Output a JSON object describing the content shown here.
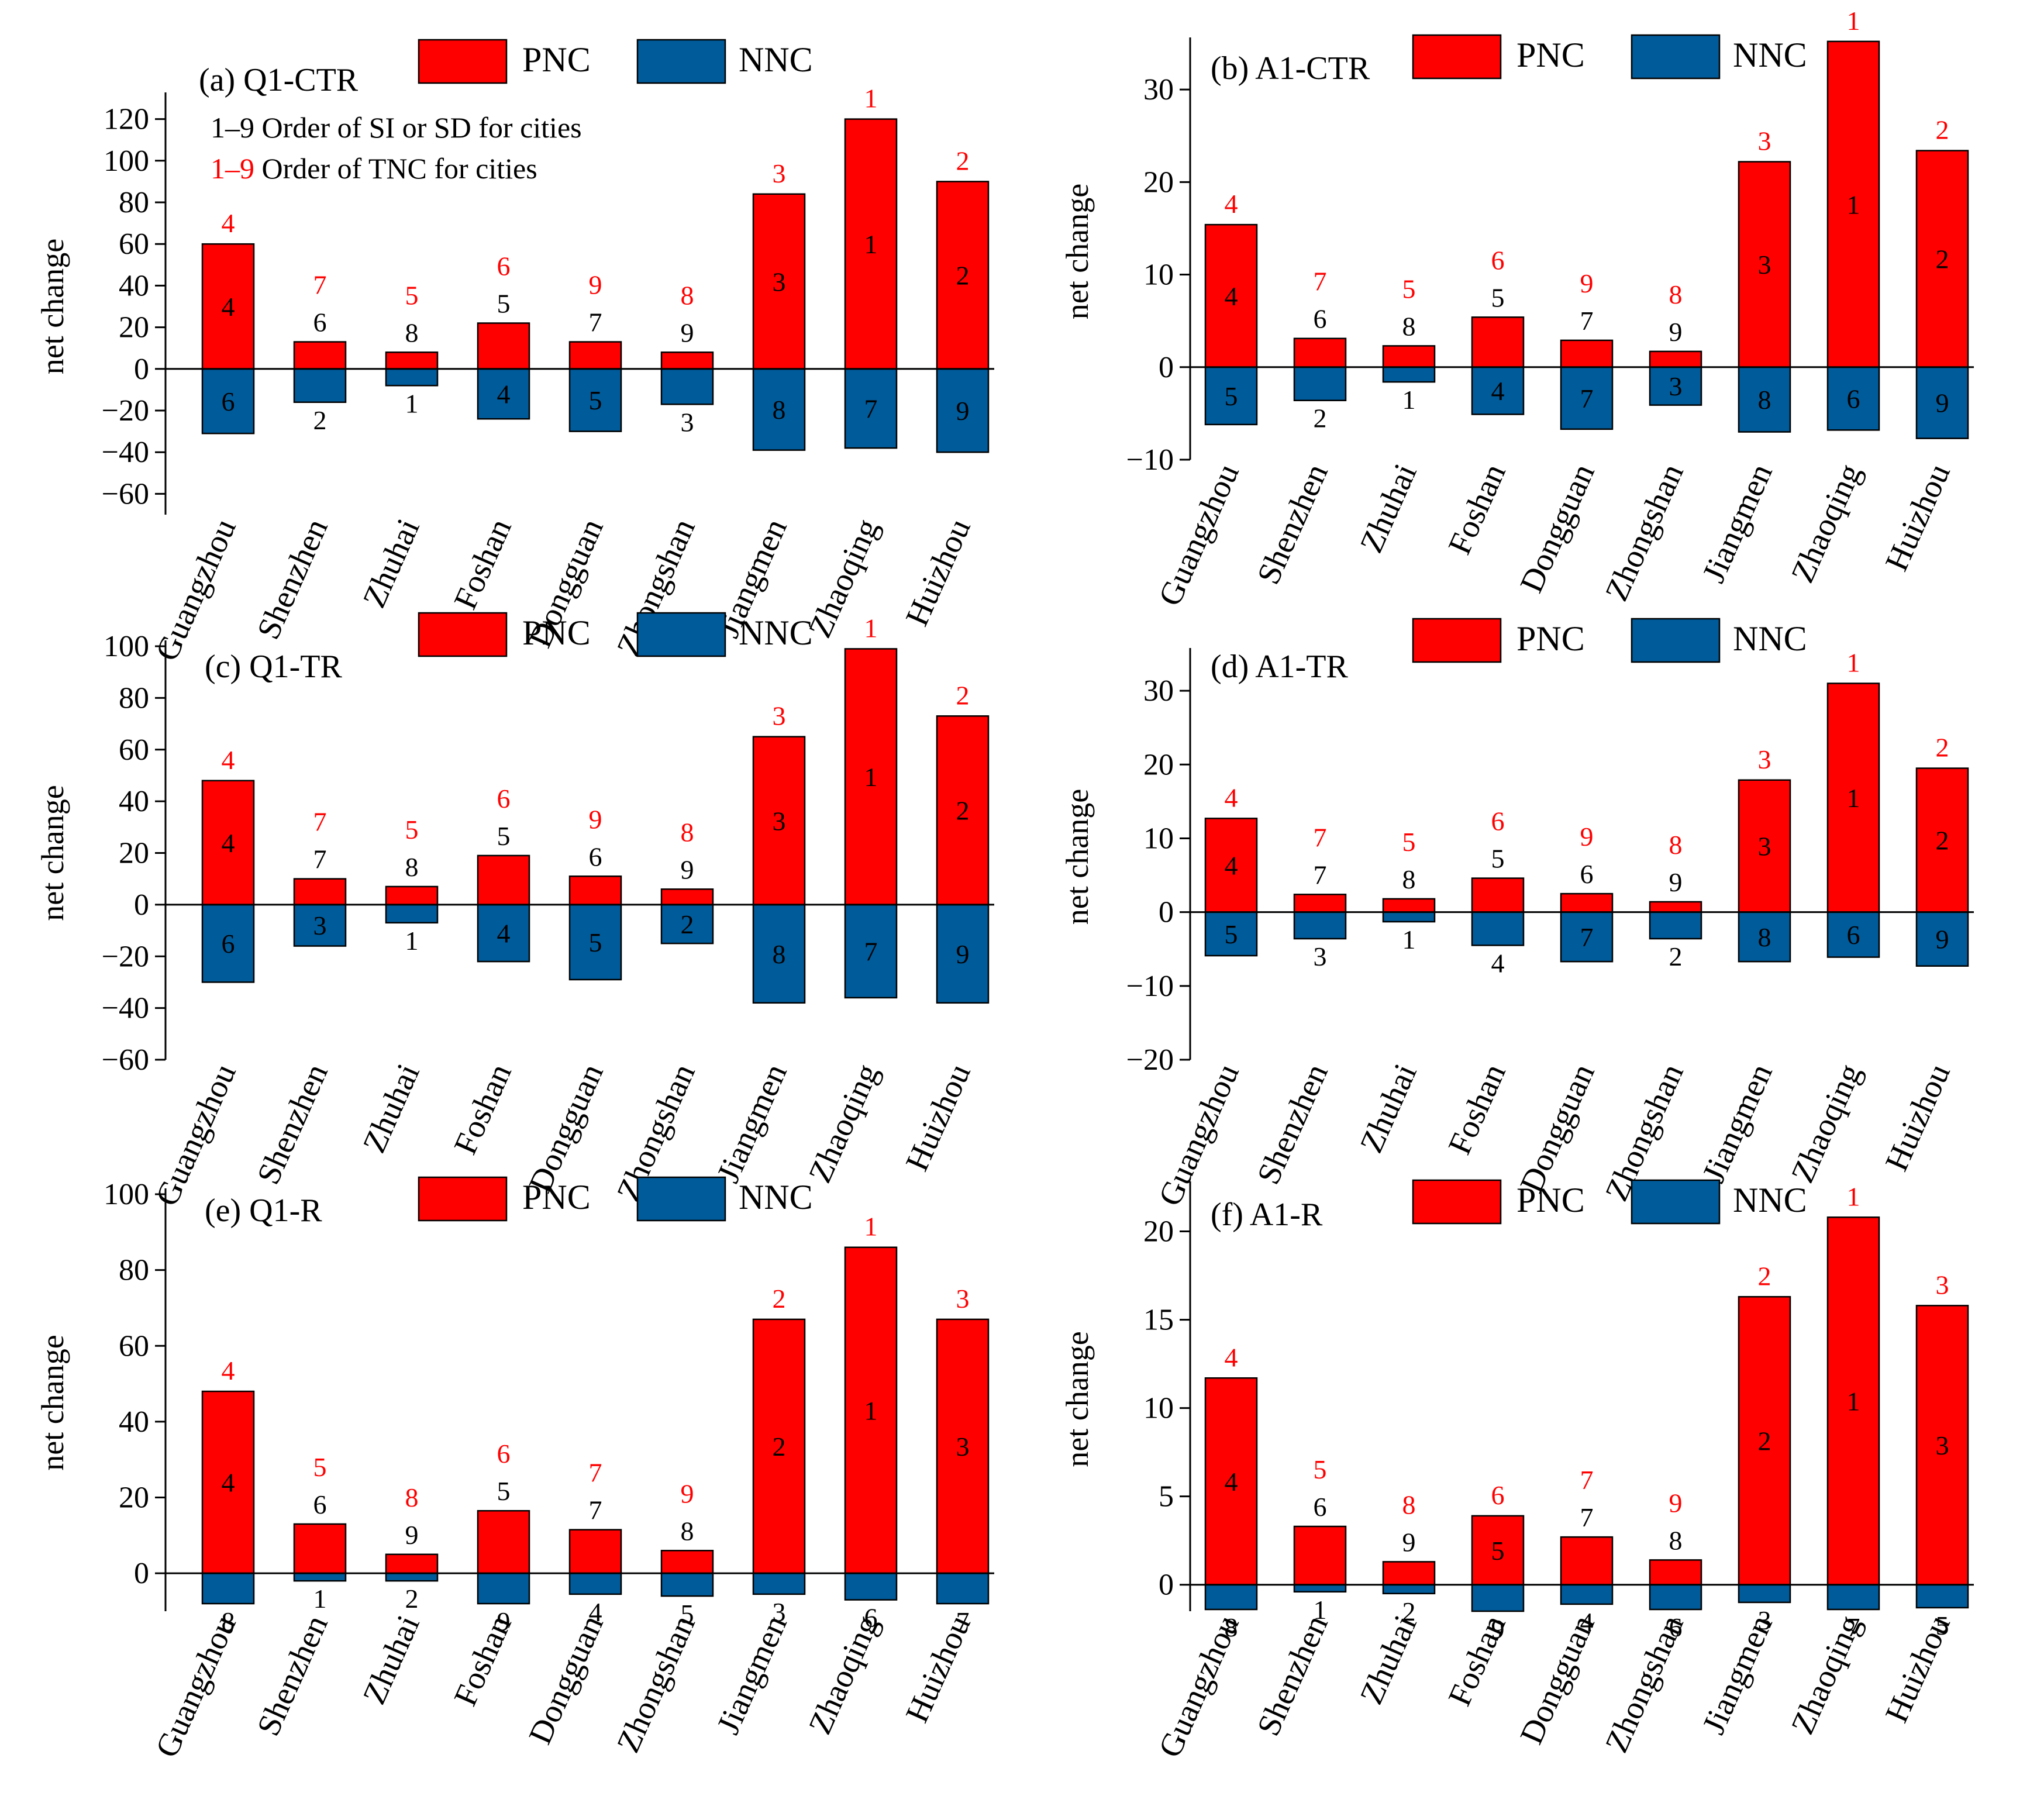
{
  "colors": {
    "pnc": "#ff0000",
    "nnc": "#005b9a",
    "rank_red": "#ff0000",
    "rank_black": "#000000"
  },
  "legend": {
    "pnc_label": "PNC",
    "nnc_label": "NNC"
  },
  "note": {
    "line1_prefix": "1–9",
    "line1_text": "Order of SI or SD for cities",
    "line2_prefix": "1–9",
    "line2_text": "Order of TNC for cities"
  },
  "chart_data": [
    {
      "id": "a",
      "type": "bar",
      "title": "(a) Q1-CTR",
      "ylabel": "net change",
      "xlabel": "",
      "categories": [
        "Guangzhou",
        "Shenzhen",
        "Zhuhai",
        "Foshan",
        "Dongguan",
        "Zhongshan",
        "Jiangmen",
        "Zhaoqing",
        "Huizhou"
      ],
      "ylim": [
        -70,
        130
      ],
      "yticks": [
        120,
        100,
        80,
        60,
        40,
        20,
        0,
        -20,
        -40,
        -60
      ],
      "series": [
        {
          "name": "PNC",
          "values": [
            60,
            13,
            8,
            22,
            13,
            8,
            84,
            120,
            90
          ]
        },
        {
          "name": "NNC",
          "values": [
            -31,
            -16,
            -8,
            -24,
            -30,
            -17,
            -39,
            -38,
            -40
          ]
        }
      ],
      "pnc_order": [
        "4",
        "6",
        "8",
        "5",
        "7",
        "9",
        "3",
        "1",
        "2"
      ],
      "nnc_order": [
        "6",
        "2",
        "1",
        "4",
        "5",
        "3",
        "8",
        "7",
        "9"
      ],
      "tnc_order": [
        "4",
        "7",
        "5",
        "6",
        "9",
        "8",
        "3",
        "1",
        "2"
      ]
    },
    {
      "id": "b",
      "type": "bar",
      "title": "(b) A1-CTR",
      "ylabel": "net change",
      "xlabel": "",
      "categories": [
        "Guangzhou",
        "Shenzhen",
        "Zhuhai",
        "Foshan",
        "Dongguan",
        "Zhongshan",
        "Jiangmen",
        "Zhaoqing",
        "Huizhou"
      ],
      "ylim": [
        -10,
        35
      ],
      "yticks": [
        30,
        20,
        10,
        0,
        -10
      ],
      "series": [
        {
          "name": "PNC",
          "values": [
            15.4,
            3.1,
            2.3,
            5.4,
            2.9,
            1.7,
            22.2,
            35.2,
            23.4
          ]
        },
        {
          "name": "NNC",
          "values": [
            -6.2,
            -3.6,
            -1.6,
            -5.1,
            -6.7,
            -4.1,
            -7.0,
            -6.8,
            -7.7
          ]
        }
      ],
      "pnc_order": [
        "4",
        "6",
        "8",
        "5",
        "7",
        "9",
        "3",
        "1",
        "2"
      ],
      "nnc_order": [
        "5",
        "2",
        "1",
        "4",
        "7",
        "3",
        "8",
        "6",
        "9"
      ],
      "tnc_order": [
        "4",
        "7",
        "5",
        "6",
        "9",
        "8",
        "3",
        "1",
        "2"
      ]
    },
    {
      "id": "c",
      "type": "bar",
      "title": "(c) Q1-TR",
      "ylabel": "net change",
      "xlabel": "",
      "categories": [
        "Guangzhou",
        "Shenzhen",
        "Zhuhai",
        "Foshan",
        "Dongguan",
        "Zhongshan",
        "Jiangmen",
        "Zhaoqing",
        "Huizhou"
      ],
      "ylim": [
        -60,
        100
      ],
      "yticks": [
        100,
        80,
        60,
        40,
        20,
        0,
        -20,
        -40,
        -60
      ],
      "series": [
        {
          "name": "PNC",
          "values": [
            48,
            10,
            7,
            19,
            11,
            6,
            65,
            99,
            73
          ]
        },
        {
          "name": "NNC",
          "values": [
            -30,
            -16,
            -7,
            -22,
            -29,
            -15,
            -38,
            -36,
            -38
          ]
        }
      ],
      "pnc_order": [
        "4",
        "7",
        "8",
        "5",
        "6",
        "9",
        "3",
        "1",
        "2"
      ],
      "nnc_order": [
        "6",
        "3",
        "1",
        "4",
        "5",
        "2",
        "8",
        "7",
        "9"
      ],
      "tnc_order": [
        "4",
        "7",
        "5",
        "6",
        "9",
        "8",
        "3",
        "1",
        "2"
      ]
    },
    {
      "id": "d",
      "type": "bar",
      "title": "(d) A1-TR",
      "ylabel": "net change",
      "xlabel": "",
      "categories": [
        "Guangzhou",
        "Shenzhen",
        "Zhuhai",
        "Foshan",
        "Dongguan",
        "Zhongshan",
        "Jiangmen",
        "Zhaoqing",
        "Huizhou"
      ],
      "ylim": [
        -20,
        35
      ],
      "yticks": [
        30,
        20,
        10,
        0,
        -10,
        -20
      ],
      "series": [
        {
          "name": "PNC",
          "values": [
            12.7,
            2.4,
            1.8,
            4.6,
            2.5,
            1.4,
            17.9,
            31,
            19.5
          ]
        },
        {
          "name": "NNC",
          "values": [
            -5.9,
            -3.6,
            -1.3,
            -4.5,
            -6.7,
            -3.6,
            -6.7,
            -6.1,
            -7.3
          ]
        }
      ],
      "pnc_order": [
        "4",
        "7",
        "8",
        "5",
        "6",
        "9",
        "3",
        "1",
        "2"
      ],
      "nnc_order": [
        "5",
        "3",
        "1",
        "4",
        "7",
        "2",
        "8",
        "6",
        "9"
      ],
      "tnc_order": [
        "4",
        "7",
        "5",
        "6",
        "9",
        "8",
        "3",
        "1",
        "2"
      ]
    },
    {
      "id": "e",
      "type": "bar",
      "title": "(e) Q1-R",
      "ylabel": "net change",
      "xlabel": "",
      "categories": [
        "Guangzhou",
        "Shenzhen",
        "Zhuhai",
        "Foshan",
        "Dongguan",
        "Zhongshan",
        "Jiangmen",
        "Zhaoqing",
        "Huizhou"
      ],
      "ylim": [
        -10,
        100
      ],
      "yticks": [
        100,
        80,
        60,
        40,
        20,
        0
      ],
      "series": [
        {
          "name": "PNC",
          "values": [
            48,
            13,
            5,
            16.5,
            11.5,
            6,
            67,
            86,
            67
          ]
        },
        {
          "name": "NNC",
          "values": [
            -8,
            -2,
            -2,
            -8,
            -5.5,
            -6,
            -5.5,
            -7,
            -8
          ]
        }
      ],
      "pnc_order": [
        "4",
        "6",
        "9",
        "5",
        "7",
        "8",
        "2",
        "1",
        "3"
      ],
      "nnc_order": [
        "8",
        "1",
        "2",
        "9",
        "4",
        "5",
        "3",
        "6",
        "7"
      ],
      "tnc_order": [
        "4",
        "5",
        "8",
        "6",
        "7",
        "9",
        "2",
        "1",
        "3"
      ]
    },
    {
      "id": "f",
      "type": "bar",
      "title": "(f) A1-R",
      "ylabel": "net change",
      "xlabel": "",
      "categories": [
        "Guangzhou",
        "Shenzhen",
        "Zhuhai",
        "Foshan",
        "Dongguan",
        "Zhongshan",
        "Jiangmen",
        "Zhaoqing",
        "Huizhou"
      ],
      "ylim": [
        -1.5,
        22.5
      ],
      "yticks": [
        20,
        15,
        10,
        5,
        0
      ],
      "series": [
        {
          "name": "PNC",
          "values": [
            11.7,
            3.3,
            1.3,
            3.9,
            2.7,
            1.4,
            16.3,
            20.8,
            15.8
          ]
        },
        {
          "name": "NNC",
          "values": [
            -1.4,
            -0.4,
            -0.5,
            -1.5,
            -1.1,
            -1.4,
            -1.0,
            -1.4,
            -1.3
          ]
        }
      ],
      "pnc_order": [
        "4",
        "6",
        "9",
        "5",
        "7",
        "8",
        "2",
        "1",
        "3"
      ],
      "nnc_order": [
        "8",
        "1",
        "2",
        "9",
        "4",
        "6",
        "3",
        "7",
        "5"
      ],
      "tnc_order": [
        "4",
        "5",
        "8",
        "6",
        "7",
        "9",
        "2",
        "1",
        "3"
      ]
    }
  ]
}
